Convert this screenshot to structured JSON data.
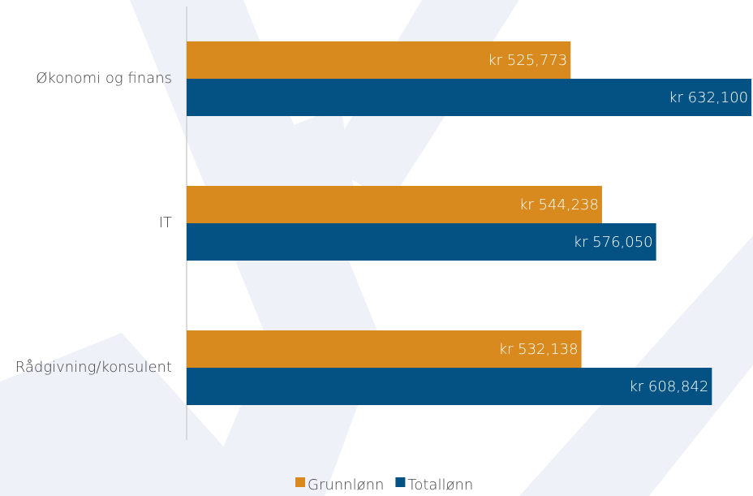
{
  "chart_data": {
    "type": "bar",
    "orientation": "horizontal",
    "categories": [
      "Økonomi og finans",
      "IT",
      "Rådgivning/konsulent"
    ],
    "series": [
      {
        "name": "Grunnlønn",
        "color": "#d98a1e",
        "values": [
          525773,
          544238,
          532138
        ],
        "value_labels": [
          "kr 525,773",
          "kr 544,238",
          "kr 532,138"
        ]
      },
      {
        "name": "Totallønn",
        "color": "#035283",
        "values": [
          632100,
          576050,
          608842
        ],
        "value_labels": [
          "kr 632,100",
          "kr 576,050",
          "kr 608,842"
        ]
      }
    ],
    "xlim": [
      300000,
      633000
    ],
    "legend": "bottom"
  }
}
